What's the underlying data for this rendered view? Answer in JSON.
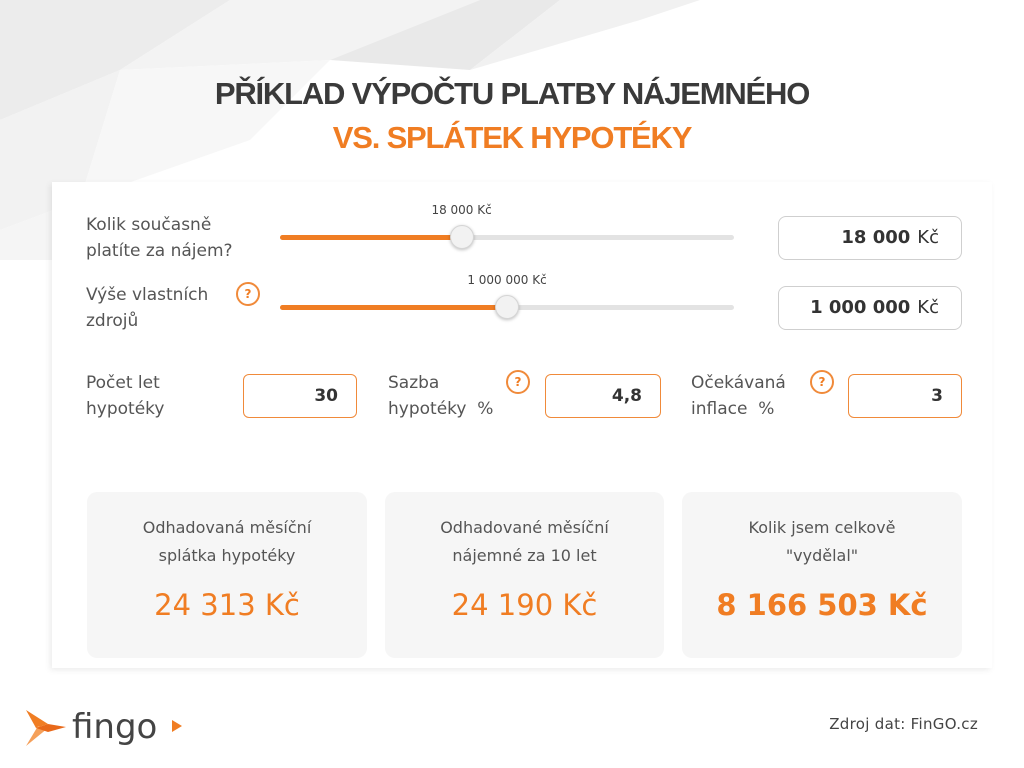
{
  "header": {
    "title_line1": "PŘÍKLAD VÝPOČTU PLATBY NÁJEMNÉHO",
    "title_line2": "VS. SPLÁTEK HYPOTÉKY"
  },
  "rent": {
    "label_line1": "Kolik současně",
    "label_line2": "platíte za nájem?",
    "slider_label": "18 000 Kč",
    "slider_level": 0.4,
    "value": "18 000",
    "unit": "Kč"
  },
  "own_funds": {
    "label_line1": "Výše vlastních",
    "label_line2": "zdrojů",
    "help": "?",
    "slider_label": "1 000 000 Kč",
    "slider_level": 0.5,
    "value": "1 000 000",
    "unit": "Kč"
  },
  "params": {
    "years": {
      "label_line1": "Počet let",
      "label_line2": "hypotéky",
      "value": "30"
    },
    "rate": {
      "label_line1": "Sazba",
      "label_line2": "hypotéky  %",
      "help": "?",
      "value": "4,8"
    },
    "inflation": {
      "label_line1": "Očekávaná",
      "label_line2": "inflace  %",
      "help": "?",
      "value": "3"
    }
  },
  "results": [
    {
      "label_line1": "Odhadovaná měsíční",
      "label_line2": "splátka hypotéky",
      "value": "24 313 Kč"
    },
    {
      "label_line1": "Odhadované měsíční",
      "label_line2": "nájemné za 10 let",
      "value": "24 190 Kč"
    },
    {
      "label_line1": "Kolik jsem celkově",
      "label_line2": "\"vydělal\"",
      "value": "8 166 503 Kč"
    }
  ],
  "footer": {
    "logo_text": "fingo",
    "source": "Zdroj dat: FinGO.cz"
  },
  "colors": {
    "accent": "#f07d23",
    "dark_text": "#3a3a3a"
  }
}
